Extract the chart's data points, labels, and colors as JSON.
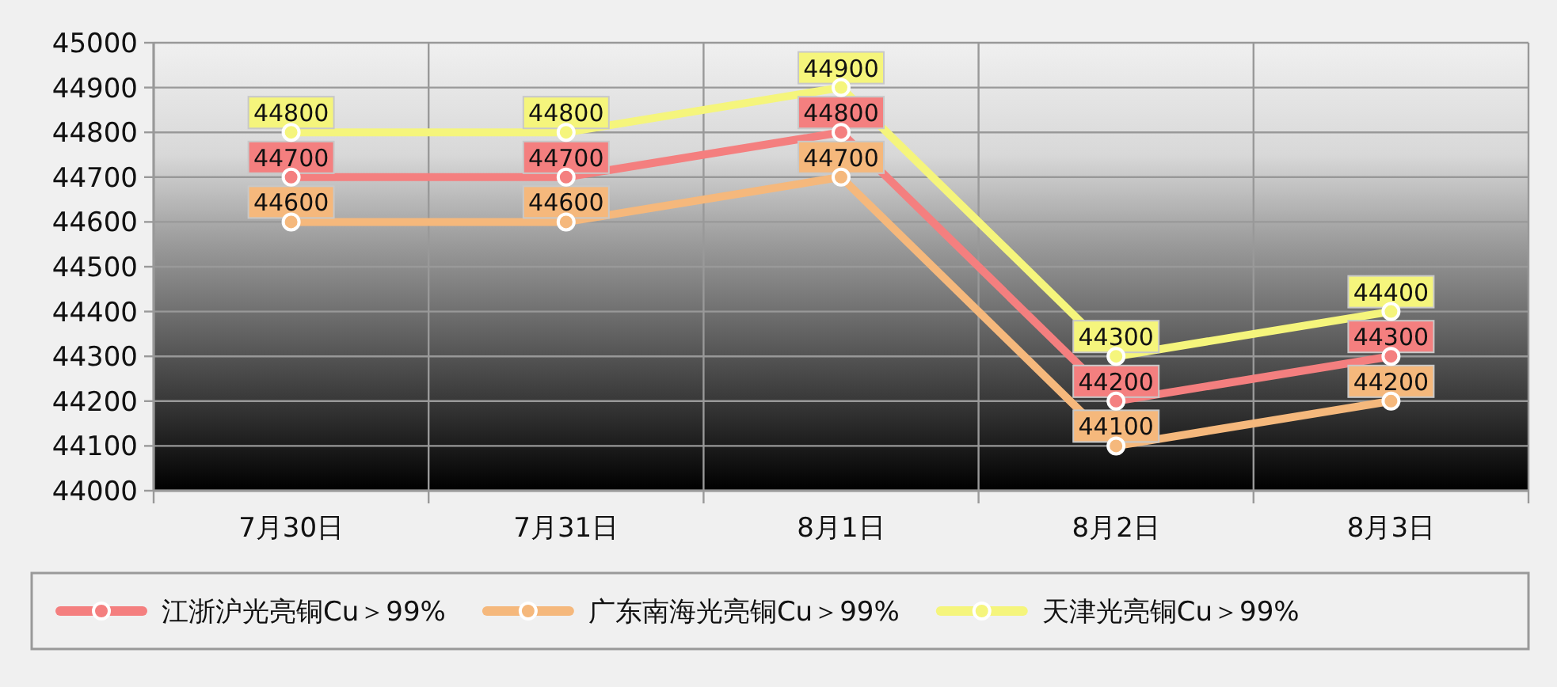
{
  "chart_data": {
    "type": "line",
    "categories": [
      "7月30日",
      "7月31日",
      "8月1日",
      "8月2日",
      "8月3日"
    ],
    "series": [
      {
        "name": "江浙沪光亮铜Cu＞99%",
        "color": "#f47f7f",
        "values": [
          44700,
          44700,
          44800,
          44200,
          44300
        ]
      },
      {
        "name": "广东南海光亮铜Cu＞99%",
        "color": "#f5b87c",
        "values": [
          44600,
          44600,
          44700,
          44100,
          44200
        ]
      },
      {
        "name": "天津光亮铜Cu＞99%",
        "color": "#f5f57c",
        "values": [
          44800,
          44800,
          44900,
          44300,
          44400
        ]
      }
    ],
    "ylim": [
      44000,
      45000
    ],
    "yticks": [
      44000,
      44100,
      44200,
      44300,
      44400,
      44500,
      44600,
      44700,
      44800,
      44900,
      45000
    ],
    "grid": true,
    "legend": "bottom",
    "marker": "circle",
    "line_style": "solid",
    "data_labels": true
  }
}
